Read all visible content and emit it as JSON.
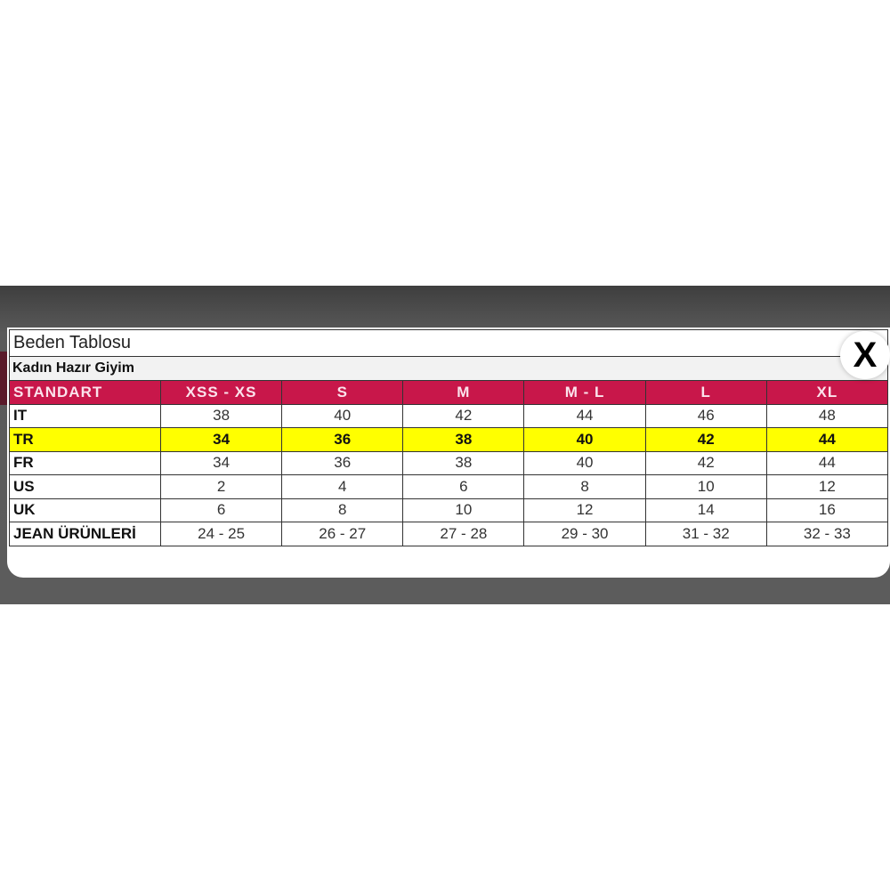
{
  "title": "Beden Tablosu",
  "subtitle": "Kadın Hazır Giyim",
  "close_label": "X",
  "colors": {
    "header": "#c8174a",
    "highlight": "#ffff00"
  },
  "header": [
    "STANDART",
    "XSS - XS",
    "S",
    "M",
    "M - L",
    "L",
    "XL"
  ],
  "rows": [
    {
      "label": "IT",
      "values": [
        "38",
        "40",
        "42",
        "44",
        "46",
        "48"
      ]
    },
    {
      "label": "TR",
      "values": [
        "34",
        "36",
        "38",
        "40",
        "42",
        "44"
      ],
      "highlight": true
    },
    {
      "label": "FR",
      "values": [
        "34",
        "36",
        "38",
        "40",
        "42",
        "44"
      ]
    },
    {
      "label": "US",
      "values": [
        "2",
        "4",
        "6",
        "8",
        "10",
        "12"
      ]
    },
    {
      "label": "UK",
      "values": [
        "6",
        "8",
        "10",
        "12",
        "14",
        "16"
      ]
    },
    {
      "label": "JEAN ÜRÜNLERİ",
      "values": [
        "24 - 25",
        "26 - 27",
        "27 - 28",
        "29 - 30",
        "31 - 32",
        "32 - 33"
      ]
    }
  ]
}
